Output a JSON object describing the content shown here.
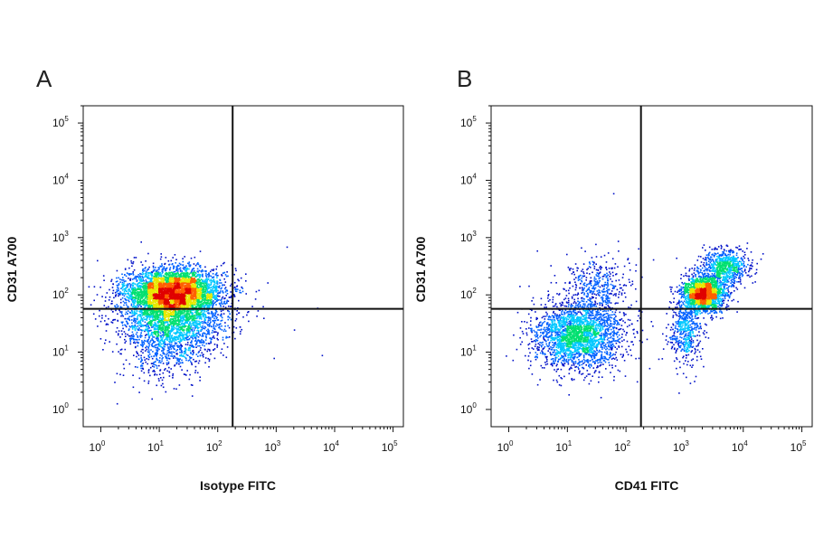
{
  "chart_data": [
    {
      "type": "scatter",
      "panel_label": "A",
      "xlabel": "Isotype FITC",
      "ylabel": "CD31 A700",
      "x_scale": "log",
      "y_scale": "log",
      "xlim": [
        0.5,
        150000
      ],
      "ylim": [
        0.5,
        200000
      ],
      "x_ticks": [
        1,
        10,
        100,
        1000,
        10000,
        100000
      ],
      "y_ticks": [
        1,
        10,
        100,
        1000,
        10000,
        100000
      ],
      "tick_base": "10",
      "tick_exponents": [
        "0",
        "1",
        "2",
        "3",
        "4",
        "5"
      ],
      "quadrant_gate": {
        "x": 180,
        "y": 57
      },
      "colormap": [
        "#0010c8",
        "#0060ff",
        "#00c8ff",
        "#00e070",
        "#e8e800",
        "#ff6000",
        "#e00000"
      ],
      "populations": [
        {
          "center": [
            18,
            120
          ],
          "count": 3200,
          "spread": [
            0.42,
            0.2
          ]
        },
        {
          "center": [
            15,
            50
          ],
          "count": 2600,
          "spread": [
            0.45,
            0.32
          ]
        },
        {
          "center": [
            14,
            12
          ],
          "count": 500,
          "spread": [
            0.35,
            0.3
          ]
        }
      ],
      "outliers": [
        [
          600,
          40
        ],
        [
          900,
          8
        ],
        [
          2000,
          25
        ],
        [
          5000,
          60
        ],
        [
          6000,
          9
        ],
        [
          1500,
          700
        ],
        [
          250,
          140
        ]
      ]
    },
    {
      "type": "scatter",
      "panel_label": "B",
      "xlabel": "CD41 FITC",
      "ylabel": "CD31 A700",
      "x_scale": "log",
      "y_scale": "log",
      "xlim": [
        0.5,
        150000
      ],
      "ylim": [
        0.5,
        200000
      ],
      "x_ticks": [
        1,
        10,
        100,
        1000,
        10000,
        100000
      ],
      "y_ticks": [
        1,
        10,
        100,
        1000,
        10000,
        100000
      ],
      "tick_base": "10",
      "tick_exponents": [
        "0",
        "1",
        "2",
        "3",
        "4",
        "5"
      ],
      "quadrant_gate": {
        "x": 180,
        "y": 57
      },
      "colormap": [
        "#0010c8",
        "#0060ff",
        "#00c8ff",
        "#00e070",
        "#e8e800",
        "#ff6000",
        "#e00000"
      ],
      "populations": [
        {
          "center": [
            15,
            20
          ],
          "count": 2400,
          "spread": [
            0.38,
            0.3
          ]
        },
        {
          "center": [
            30,
            150
          ],
          "count": 400,
          "spread": [
            0.3,
            0.25
          ]
        },
        {
          "center": [
            2100,
            110
          ],
          "count": 1800,
          "spread": [
            0.18,
            0.16
          ]
        },
        {
          "center": [
            5000,
            320
          ],
          "count": 700,
          "spread": [
            0.2,
            0.15
          ]
        },
        {
          "center": [
            1000,
            25
          ],
          "count": 500,
          "spread": [
            0.14,
            0.3
          ]
        }
      ],
      "outliers": [
        [
          60,
          6000
        ],
        [
          3,
          600
        ],
        [
          120,
          9
        ]
      ]
    }
  ]
}
